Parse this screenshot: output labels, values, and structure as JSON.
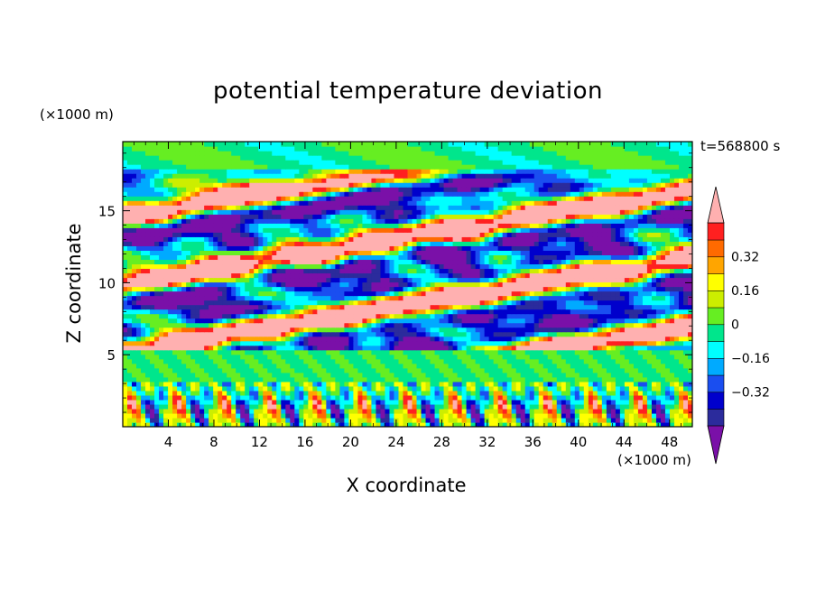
{
  "chart_data": {
    "type": "heatmap",
    "title": "potential temperature deviation",
    "xlabel": "X coordinate",
    "ylabel": "Z coordinate",
    "x_unit_label": "(×1000 m)",
    "y_unit_label": "(×1000 m)",
    "time_label": "t=568800 s",
    "xlim": [
      0,
      50
    ],
    "ylim": [
      0,
      19.8
    ],
    "x_ticks": [
      4,
      8,
      12,
      16,
      20,
      24,
      28,
      32,
      36,
      40,
      44,
      48
    ],
    "y_ticks": [
      5,
      10,
      15
    ],
    "colorbar": {
      "levels": [
        -0.48,
        -0.4,
        -0.32,
        -0.24,
        -0.16,
        -0.08,
        0,
        0.08,
        0.16,
        0.24,
        0.32,
        0.4,
        0.48
      ],
      "colors": [
        "#7a10a8",
        "#2b2b9c",
        "#0000cc",
        "#1a4ef0",
        "#00aaff",
        "#00ffff",
        "#00e68c",
        "#66ee22",
        "#ccee00",
        "#ffff00",
        "#ffa500",
        "#ff6a00",
        "#ff2020",
        "#ffb0b0"
      ],
      "labels": [
        {
          "value": 0.32,
          "text": "0.32"
        },
        {
          "value": 0.16,
          "text": "0.16"
        },
        {
          "value": 0,
          "text": "0"
        },
        {
          "value": -0.16,
          "text": "−0.16"
        },
        {
          "value": -0.32,
          "text": "−0.32"
        }
      ],
      "extend": "both"
    },
    "field_layers": [
      {
        "zmin": 0,
        "zmax": 3,
        "pattern": "convective plumes alternating warm/cold"
      },
      {
        "zmin": 3,
        "zmax": 5.3,
        "pattern": "near-neutral stable layer"
      },
      {
        "zmin": 5.3,
        "zmax": 17.5,
        "pattern": "tilted strong warm and cold bands"
      },
      {
        "zmin": 17.5,
        "zmax": 19.8,
        "pattern": "weak near-zero deviation"
      }
    ]
  }
}
